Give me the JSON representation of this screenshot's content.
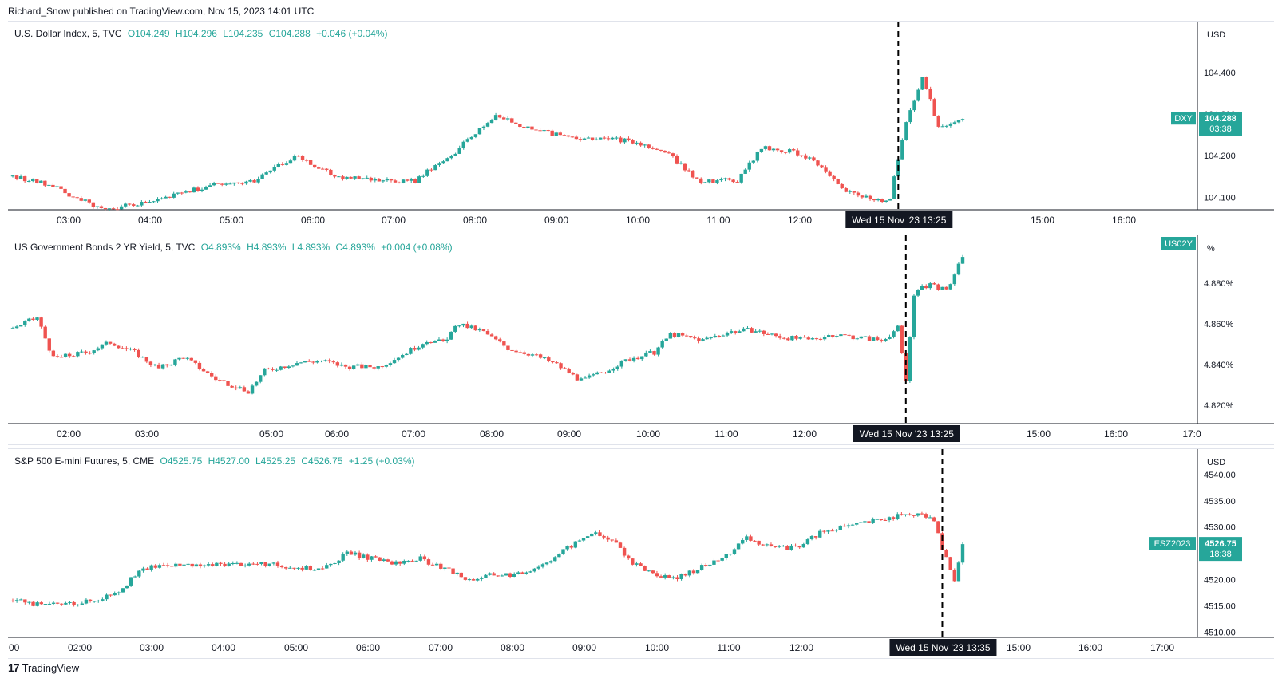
{
  "publisher": "Richard_Snow published on TradingView.com, Nov 15, 2023 14:01 UTC",
  "footer": {
    "brand": "TradingView",
    "logo_icon": "tradingview-logo-icon"
  },
  "colors": {
    "up": "#26a69a",
    "down": "#ef5350",
    "axis": "#131722",
    "grid": "#e0e3eb"
  },
  "chart_data": [
    {
      "type": "candlestick",
      "symbol": "DXY",
      "legend": {
        "name": "U.S. Dollar Index, 5, TVC",
        "o": "O104.249",
        "h": "H104.296",
        "l": "L104.235",
        "c": "C104.288",
        "chg": "+0.046 (+0.04%)"
      },
      "unit_label": "USD",
      "ylim": [
        104.07,
        104.48
      ],
      "ticks": [
        {
          "v": 104.1,
          "label": "104.100"
        },
        {
          "v": 104.2,
          "label": "104.200"
        },
        {
          "v": 104.3,
          "label": "104.300"
        },
        {
          "v": 104.4,
          "label": "104.400"
        }
      ],
      "x_ticks": [
        "03:00",
        "04:00",
        "05:00",
        "06:00",
        "07:00",
        "08:00",
        "09:00",
        "10:00",
        "11:00",
        "12:00",
        "15:00",
        "16:00"
      ],
      "event_label": "Wed 15 Nov '23   13:25",
      "price_tag": {
        "symbol": "DXY",
        "value": "104.288",
        "countdown": "03:38",
        "price": 104.288
      },
      "close_anchors": [
        [
          0,
          104.15
        ],
        [
          10,
          104.13
        ],
        [
          16,
          104.095
        ],
        [
          22,
          104.075
        ],
        [
          30,
          104.08
        ],
        [
          40,
          104.105
        ],
        [
          50,
          104.13
        ],
        [
          60,
          104.14
        ],
        [
          70,
          104.2
        ],
        [
          80,
          104.15
        ],
        [
          90,
          104.14
        ],
        [
          100,
          104.14
        ],
        [
          110,
          104.21
        ],
        [
          120,
          104.3
        ],
        [
          124,
          104.28
        ],
        [
          130,
          104.26
        ],
        [
          140,
          104.24
        ],
        [
          150,
          104.24
        ],
        [
          160,
          104.22
        ],
        [
          166,
          104.18
        ],
        [
          170,
          104.14
        ],
        [
          180,
          104.14
        ],
        [
          186,
          104.22
        ],
        [
          194,
          104.21
        ],
        [
          200,
          104.18
        ],
        [
          206,
          104.12
        ],
        [
          214,
          104.09
        ],
        [
          218,
          104.1
        ],
        [
          222,
          104.28
        ],
        [
          226,
          104.39
        ],
        [
          230,
          104.27
        ],
        [
          236,
          104.288
        ]
      ],
      "candle_count": 237,
      "event_index": 220
    },
    {
      "type": "candlestick",
      "symbol": "US02Y",
      "legend": {
        "name": "US Government Bonds 2 YR Yield, 5, TVC",
        "o": "O4.893%",
        "h": "H4.893%",
        "l": "L4.893%",
        "c": "C4.893%",
        "chg": "+0.004 (+0.08%)"
      },
      "unit_label": "%",
      "ylim": [
        4.811,
        4.895
      ],
      "ticks": [
        {
          "v": 4.82,
          "label": "4.820%"
        },
        {
          "v": 4.84,
          "label": "4.840%"
        },
        {
          "v": 4.86,
          "label": "4.860%"
        },
        {
          "v": 4.88,
          "label": "4.880%"
        }
      ],
      "x_ticks": [
        "02:00",
        "03:00",
        "05:00",
        "06:00",
        "07:00",
        "08:00",
        "09:00",
        "10:00",
        "11:00",
        "12:00",
        "15:00",
        "16:00",
        "17:0"
      ],
      "event_label": "Wed 15 Nov '23   13:25",
      "price_tag": {
        "symbol": "US02Y",
        "value": "",
        "countdown": "",
        "price": 4.893
      },
      "close_anchors": [
        [
          0,
          4.858
        ],
        [
          6,
          4.863
        ],
        [
          10,
          4.843
        ],
        [
          18,
          4.846
        ],
        [
          24,
          4.851
        ],
        [
          30,
          4.846
        ],
        [
          36,
          4.838
        ],
        [
          42,
          4.844
        ],
        [
          50,
          4.833
        ],
        [
          58,
          4.827
        ],
        [
          62,
          4.837
        ],
        [
          70,
          4.841
        ],
        [
          76,
          4.842
        ],
        [
          82,
          4.839
        ],
        [
          90,
          4.839
        ],
        [
          96,
          4.845
        ],
        [
          102,
          4.852
        ],
        [
          106,
          4.851
        ],
        [
          110,
          4.86
        ],
        [
          116,
          4.856
        ],
        [
          122,
          4.848
        ],
        [
          128,
          4.845
        ],
        [
          134,
          4.84
        ],
        [
          140,
          4.832
        ],
        [
          146,
          4.837
        ],
        [
          152,
          4.843
        ],
        [
          158,
          4.846
        ],
        [
          162,
          4.855
        ],
        [
          170,
          4.852
        ],
        [
          176,
          4.856
        ],
        [
          182,
          4.857
        ],
        [
          188,
          4.854
        ],
        [
          196,
          4.852
        ],
        [
          202,
          4.855
        ],
        [
          210,
          4.853
        ],
        [
          214,
          4.852
        ],
        [
          218,
          4.858
        ],
        [
          220,
          4.832
        ],
        [
          222,
          4.875
        ],
        [
          226,
          4.88
        ],
        [
          230,
          4.876
        ],
        [
          234,
          4.893
        ]
      ],
      "candle_count": 235,
      "event_index": 220
    },
    {
      "type": "candlestick",
      "symbol": "ESZ2023",
      "legend": {
        "name": "S&P 500 E-mini Futures, 5, CME",
        "o": "O4525.75",
        "h": "H4527.00",
        "l": "L4525.25",
        "c": "C4526.75",
        "chg": "+1.25 (+0.03%)"
      },
      "unit_label": "USD",
      "ylim": [
        4509,
        4541.5
      ],
      "ticks": [
        {
          "v": 4510,
          "label": "4510.00"
        },
        {
          "v": 4515,
          "label": "4515.00"
        },
        {
          "v": 4520,
          "label": "4520.00"
        },
        {
          "v": 4525,
          "label": "4525.00"
        },
        {
          "v": 4530,
          "label": "4530.00"
        },
        {
          "v": 4535,
          "label": "4535.00"
        },
        {
          "v": 4540,
          "label": "4540.00"
        }
      ],
      "x_ticks": [
        ":00",
        "02:00",
        "03:00",
        "04:00",
        "05:00",
        "06:00",
        "07:00",
        "08:00",
        "09:00",
        "10:00",
        "11:00",
        "12:00",
        "15:00",
        "16:00",
        "17:00"
      ],
      "event_label": "Wed 15 Nov '23   13:35",
      "price_tag": {
        "symbol": "ESZ2023",
        "value": "4526.75",
        "countdown": "18:38",
        "price": 4526.75
      },
      "close_anchors": [
        [
          0,
          4516
        ],
        [
          8,
          4515
        ],
        [
          14,
          4515.5
        ],
        [
          20,
          4516
        ],
        [
          26,
          4518
        ],
        [
          32,
          4522
        ],
        [
          38,
          4523
        ],
        [
          44,
          4522.5
        ],
        [
          52,
          4523
        ],
        [
          60,
          4523
        ],
        [
          68,
          4522.5
        ],
        [
          76,
          4522
        ],
        [
          82,
          4525
        ],
        [
          88,
          4524
        ],
        [
          94,
          4523
        ],
        [
          100,
          4524
        ],
        [
          106,
          4522
        ],
        [
          112,
          4520
        ],
        [
          118,
          4521
        ],
        [
          124,
          4521
        ],
        [
          130,
          4523
        ],
        [
          136,
          4526
        ],
        [
          142,
          4529
        ],
        [
          148,
          4527
        ],
        [
          152,
          4523
        ],
        [
          158,
          4521
        ],
        [
          162,
          4520
        ],
        [
          168,
          4522
        ],
        [
          174,
          4524
        ],
        [
          180,
          4528
        ],
        [
          186,
          4526
        ],
        [
          192,
          4526
        ],
        [
          198,
          4529
        ],
        [
          204,
          4530
        ],
        [
          210,
          4531
        ],
        [
          216,
          4532
        ],
        [
          222,
          4532.5
        ],
        [
          226,
          4531
        ],
        [
          228,
          4526
        ],
        [
          231,
          4520
        ],
        [
          233,
          4526
        ]
      ],
      "candle_count": 234,
      "event_index": 228
    }
  ]
}
